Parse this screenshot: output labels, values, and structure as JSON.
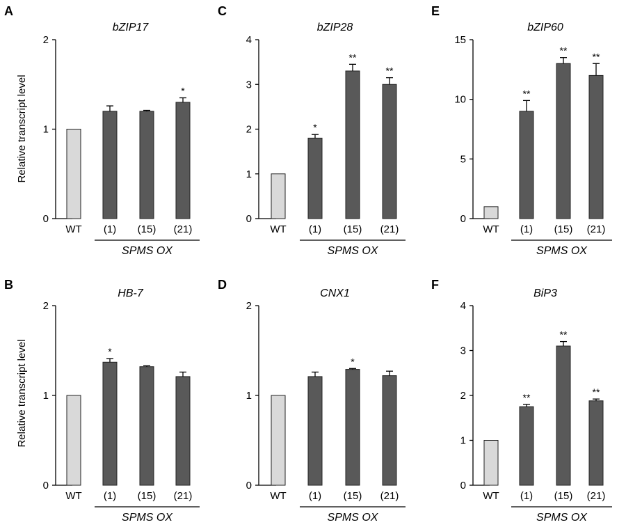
{
  "ylabel": "Relative  transcript level",
  "group_label": "SPMS OX",
  "colors": {
    "control": "#d9d9d9",
    "overexpression": "#595959"
  },
  "chart_data": [
    {
      "panel": "A",
      "type": "bar",
      "title": "bZIP17",
      "categories": [
        "WT",
        "(1)",
        "(15)",
        "(21)"
      ],
      "values": [
        1.0,
        1.2,
        1.2,
        1.3
      ],
      "errors": [
        0,
        0.06,
        0.01,
        0.05
      ],
      "significance": [
        "",
        "",
        "",
        "*"
      ],
      "ylim": [
        0,
        2
      ],
      "yticks": [
        0,
        1,
        2
      ]
    },
    {
      "panel": "B",
      "type": "bar",
      "title": "HB-7",
      "categories": [
        "WT",
        "(1)",
        "(15)",
        "(21)"
      ],
      "values": [
        1.0,
        1.37,
        1.32,
        1.21
      ],
      "errors": [
        0,
        0.04,
        0.01,
        0.05
      ],
      "significance": [
        "",
        "*",
        "",
        ""
      ],
      "ylim": [
        0,
        2
      ],
      "yticks": [
        0,
        1,
        2
      ]
    },
    {
      "panel": "C",
      "type": "bar",
      "title": "bZIP28",
      "categories": [
        "WT",
        "(1)",
        "(15)",
        "(21)"
      ],
      "values": [
        1.0,
        1.8,
        3.3,
        3.0
      ],
      "errors": [
        0,
        0.08,
        0.15,
        0.15
      ],
      "significance": [
        "",
        "*",
        "**",
        "**"
      ],
      "ylim": [
        0,
        4
      ],
      "yticks": [
        0,
        1,
        2,
        3,
        4
      ]
    },
    {
      "panel": "D",
      "type": "bar",
      "title": "CNX1",
      "categories": [
        "WT",
        "(1)",
        "(15)",
        "(21)"
      ],
      "values": [
        1.0,
        1.21,
        1.29,
        1.22
      ],
      "errors": [
        0,
        0.05,
        0.01,
        0.05
      ],
      "significance": [
        "",
        "",
        "*",
        ""
      ],
      "ylim": [
        0,
        2
      ],
      "yticks": [
        0,
        1,
        2
      ]
    },
    {
      "panel": "E",
      "type": "bar",
      "title": "bZIP60",
      "categories": [
        "WT",
        "(1)",
        "(15)",
        "(21)"
      ],
      "values": [
        1.0,
        9.0,
        13.0,
        12.0
      ],
      "errors": [
        0,
        0.9,
        0.5,
        1.0
      ],
      "significance": [
        "",
        "**",
        "**",
        "**"
      ],
      "ylim": [
        0,
        15
      ],
      "yticks": [
        0,
        5,
        10,
        15
      ]
    },
    {
      "panel": "F",
      "type": "bar",
      "title": "BiP3",
      "categories": [
        "WT",
        "(1)",
        "(15)",
        "(21)"
      ],
      "values": [
        1.0,
        1.75,
        3.1,
        1.88
      ],
      "errors": [
        0,
        0.05,
        0.1,
        0.04
      ],
      "significance": [
        "",
        "**",
        "**",
        "**"
      ],
      "ylim": [
        0,
        4
      ],
      "yticks": [
        0,
        1,
        2,
        3,
        4
      ]
    }
  ]
}
